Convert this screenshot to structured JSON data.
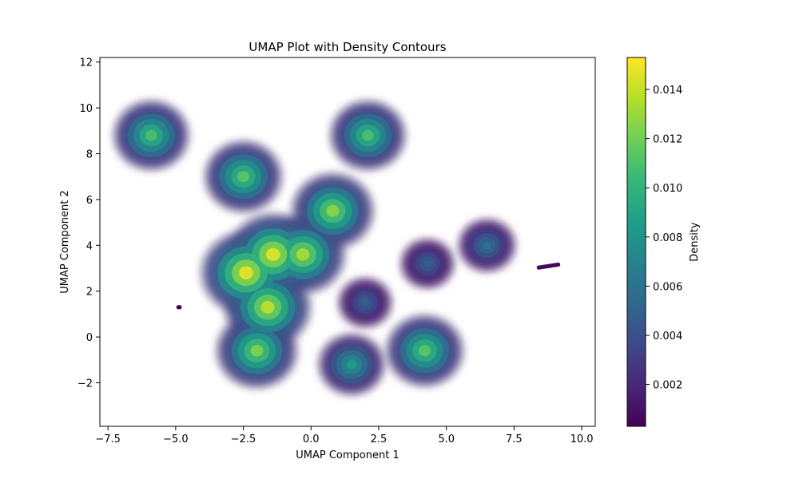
{
  "chart_data": {
    "type": "scatter",
    "title": "UMAP Plot with Density Contours",
    "xlabel": "UMAP Component 1",
    "ylabel": "UMAP Component 2",
    "xlim": [
      -7.8,
      10.5
    ],
    "ylim": [
      -3.9,
      12.2
    ],
    "xticks": [
      -7.5,
      -5.0,
      -2.5,
      0.0,
      2.5,
      5.0,
      7.5,
      10.0
    ],
    "xtick_labels": [
      "−7.5",
      "−5.0",
      "−2.5",
      "0.0",
      "2.5",
      "5.0",
      "7.5",
      "10.0"
    ],
    "yticks": [
      -2,
      0,
      2,
      4,
      6,
      8,
      10,
      12
    ],
    "ytick_labels": [
      "−2",
      "0",
      "2",
      "4",
      "6",
      "8",
      "10",
      "12"
    ],
    "grid": false,
    "colormap": "viridis",
    "colorbar": {
      "label": "Density",
      "range": [
        0.0003,
        0.0153
      ],
      "ticks": [
        0.002,
        0.004,
        0.006,
        0.008,
        0.01,
        0.012,
        0.014
      ],
      "tick_labels": [
        "0.002",
        "0.004",
        "0.006",
        "0.008",
        "0.010",
        "0.012",
        "0.014"
      ]
    },
    "clusters": [
      {
        "center": [
          -2.4,
          2.8
        ],
        "peak_density": 0.015
      },
      {
        "center": [
          -1.4,
          3.6
        ],
        "peak_density": 0.0148
      },
      {
        "center": [
          -1.6,
          1.3
        ],
        "peak_density": 0.014
      },
      {
        "center": [
          -2.0,
          -0.6
        ],
        "peak_density": 0.0125
      },
      {
        "center": [
          -0.3,
          3.6
        ],
        "peak_density": 0.0135
      },
      {
        "center": [
          0.8,
          5.5
        ],
        "peak_density": 0.0128
      },
      {
        "center": [
          -2.5,
          7.0
        ],
        "peak_density": 0.0115
      },
      {
        "center": [
          2.1,
          8.8
        ],
        "peak_density": 0.011
      },
      {
        "center": [
          -5.9,
          8.8
        ],
        "peak_density": 0.011
      },
      {
        "center": [
          4.2,
          -0.6
        ],
        "peak_density": 0.0115
      },
      {
        "center": [
          1.5,
          -1.2
        ],
        "peak_density": 0.0085
      },
      {
        "center": [
          2.0,
          1.5
        ],
        "peak_density": 0.005
      },
      {
        "center": [
          4.3,
          3.2
        ],
        "peak_density": 0.005
      },
      {
        "center": [
          6.5,
          4.0
        ],
        "peak_density": 0.006
      },
      {
        "center": [
          8.8,
          3.1
        ],
        "peak_density": 0.0006
      },
      {
        "center": [
          -4.9,
          1.3
        ],
        "peak_density": 0.0004
      }
    ]
  },
  "colors": {
    "viridis": [
      "#440154",
      "#482878",
      "#3e4989",
      "#31688e",
      "#26828e",
      "#1f9e89",
      "#35b779",
      "#6ece58",
      "#b5de2b",
      "#fde725"
    ],
    "contour_halo": "#ececec"
  }
}
